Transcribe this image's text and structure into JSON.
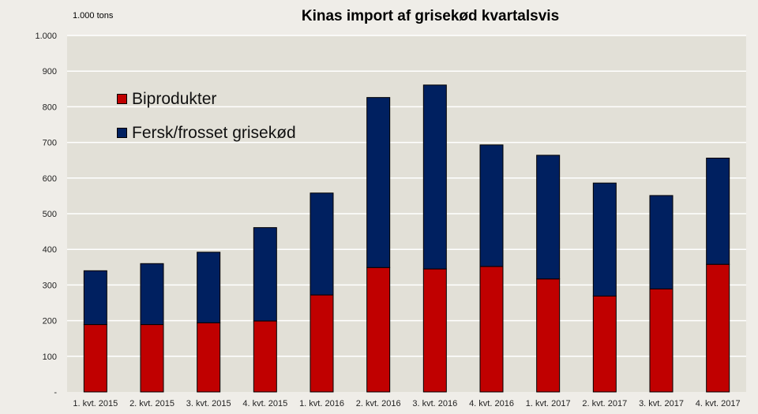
{
  "chart_data": {
    "type": "bar",
    "stacked": true,
    "title": "Kinas import af grisekød kvartalsvis",
    "ylabel": "1.000 tons",
    "xlabel": "",
    "ylim": [
      0,
      1000
    ],
    "yticks": [
      "-",
      "100",
      "200",
      "300",
      "400",
      "500",
      "600",
      "700",
      "800",
      "900",
      "1.000"
    ],
    "grid": true,
    "legend_position": "top-left",
    "categories": [
      "1. kvt. 2015",
      "2. kvt. 2015",
      "3. kvt. 2015",
      "4. kvt. 2015",
      "1. kvt. 2016",
      "2. kvt. 2016",
      "3. kvt. 2016",
      "4. kvt. 2016",
      "1. kvt. 2017",
      "2. kvt. 2017",
      "3. kvt. 2017",
      "4. kvt. 2017"
    ],
    "series": [
      {
        "name": "Biprodukter",
        "color": "#c00000",
        "values": [
          189,
          189,
          194,
          199,
          272,
          349,
          345,
          352,
          317,
          269,
          289,
          358
        ]
      },
      {
        "name": "Fersk/frosset grisekød",
        "color": "#002060",
        "values": [
          151,
          171,
          198,
          262,
          286,
          477,
          516,
          341,
          347,
          317,
          262,
          298
        ]
      }
    ]
  }
}
